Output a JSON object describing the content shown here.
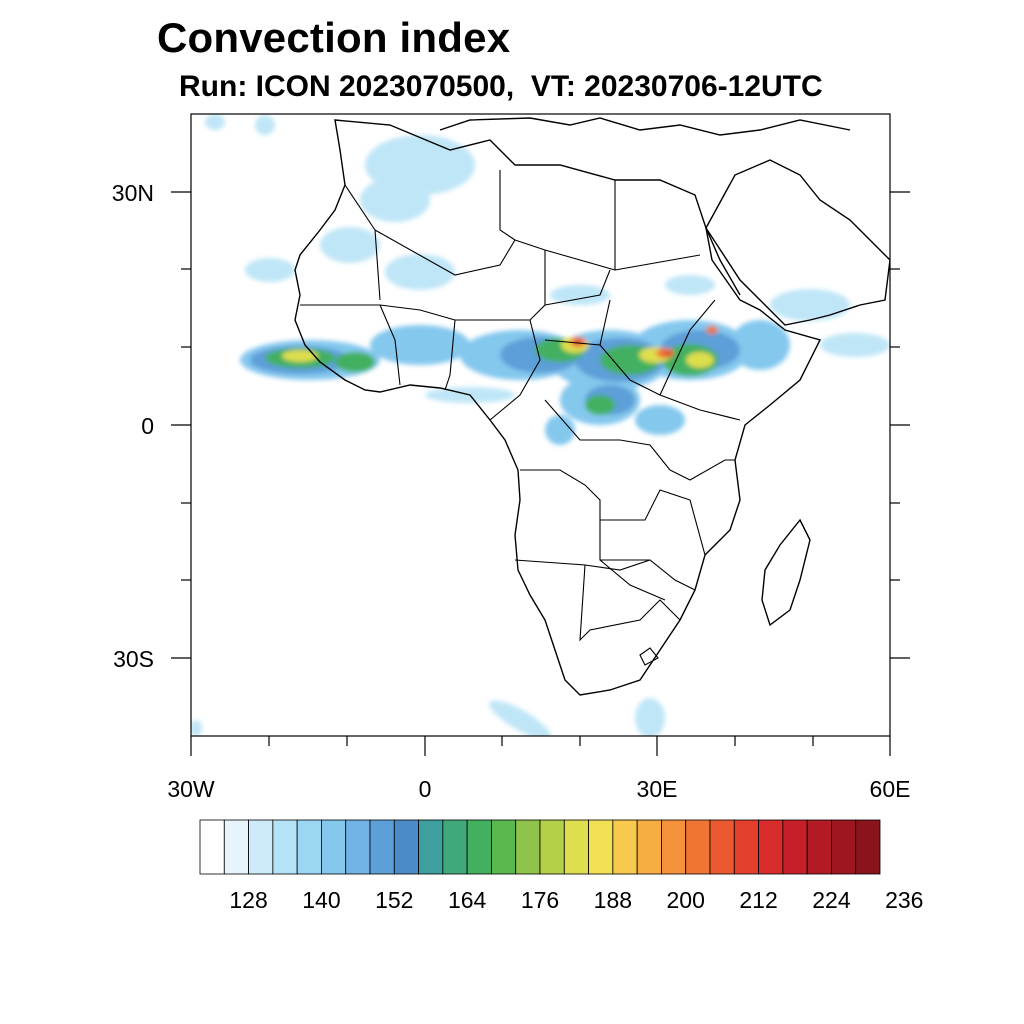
{
  "title": "Convection index",
  "subtitle": "Run: ICON 2023070500,  VT: 20230706-12UTC",
  "map": {
    "projection": "cylindrical equidistant",
    "lon_range": [
      -30,
      60
    ],
    "lat_range": [
      -40,
      40
    ],
    "lat_tick_labels": [
      "30N",
      "0",
      "30S"
    ],
    "lon_tick_labels": [
      "30W",
      "0",
      "30E",
      "60E"
    ]
  },
  "colorbar": {
    "tick_labels": [
      "128",
      "140",
      "152",
      "164",
      "176",
      "188",
      "200",
      "212",
      "224",
      "236"
    ],
    "colors": [
      "#ffffff",
      "#e6f5fc",
      "#cdebf8",
      "#b4e2f6",
      "#9bd7f3",
      "#84c8ee",
      "#72b3e5",
      "#5d9fd8",
      "#4b8bc8",
      "#3d9fa0",
      "#3fa97a",
      "#43b060",
      "#5ab94e",
      "#8ec24b",
      "#b4cf48",
      "#dede4e",
      "#f2e154",
      "#f7c94c",
      "#f6ad42",
      "#f4913b",
      "#f07535",
      "#ea5930",
      "#e2402c",
      "#d72c2b",
      "#c51f29",
      "#b21a25",
      "#9e1720",
      "#8a141c"
    ]
  },
  "colors": {
    "coast": "#000000",
    "background": "#ffffff"
  }
}
